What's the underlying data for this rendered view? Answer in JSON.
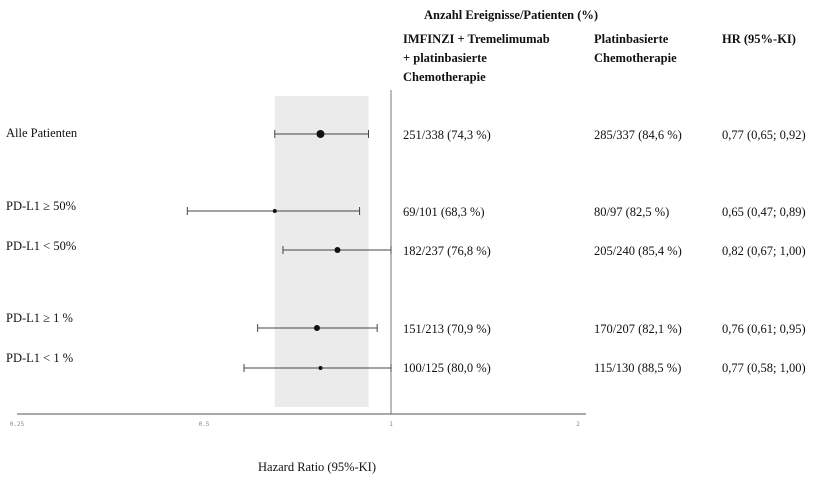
{
  "header": {
    "group_title": "Anzahl Ereignisse/Patienten (%)",
    "col_treatment": "IMFINZI + Tremelimumab\n+ platinbasierte\nChemotherapie",
    "col_control": "Platinbasierte\nChemotherapie",
    "col_hr": "HR (95%-KI)"
  },
  "chart_data": {
    "type": "forest",
    "xlabel": "Hazard Ratio (95%-KI)",
    "xscale": "log",
    "xlim": [
      0.25,
      2
    ],
    "xticks": [
      0.25,
      0.5,
      1,
      2
    ],
    "xtick_labels": [
      "0.25",
      "0.5",
      "1",
      "2"
    ],
    "reference_line": 1,
    "shaded_band": [
      0.65,
      0.92
    ],
    "rows": [
      {
        "label": "Alle Patienten",
        "hr": 0.77,
        "ci_low": 0.65,
        "ci_high": 0.92,
        "treatment": "251/338 (74,3 %)",
        "control": "285/337 (84,6 %)",
        "hr_text": "0,77 (0,65; 0,92)",
        "marker": "large"
      },
      {
        "label": "PD-L1 ≥ 50%",
        "hr": 0.65,
        "ci_low": 0.47,
        "ci_high": 0.89,
        "treatment": "69/101 (68,3 %)",
        "control": "80/97 (82,5 %)",
        "hr_text": "0,65 (0,47; 0,89)",
        "marker": "small"
      },
      {
        "label": "PD-L1 < 50%",
        "hr": 0.82,
        "ci_low": 0.67,
        "ci_high": 1.0,
        "treatment": "182/237 (76,8 %)",
        "control": "205/240 (85,4 %)",
        "hr_text": "0,82 (0,67; 1,00)",
        "marker": "medium"
      },
      {
        "label": "PD-L1 ≥ 1 %",
        "hr": 0.76,
        "ci_low": 0.61,
        "ci_high": 0.95,
        "treatment": "151/213 (70,9 %)",
        "control": "170/207 (82,1 %)",
        "hr_text": "0,76 (0,61; 0,95)",
        "marker": "medium"
      },
      {
        "label": "PD-L1 < 1 %",
        "hr": 0.77,
        "ci_low": 0.58,
        "ci_high": 1.0,
        "treatment": "100/125 (80,0 %)",
        "control": "115/130 (88,5 %)",
        "hr_text": "0,77 (0,58; 1,00)",
        "marker": "small"
      }
    ]
  }
}
